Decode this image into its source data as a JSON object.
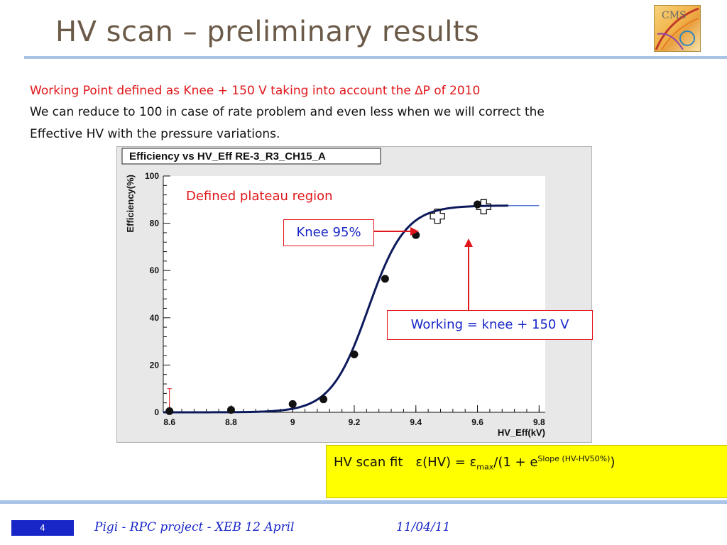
{
  "slide": {
    "title": "HV scan – preliminary results",
    "logo_text": "CMS",
    "lines": [
      "Working Point defined as Knee + 150 V taking into account the ∆P of 2010",
      "We can reduce to 100 in case of rate problem and even less when we will correct the",
      "Effective HV with the pressure variations."
    ]
  },
  "annotations": {
    "plateau": "Defined plateau region",
    "knee": "Knee 95%",
    "working": "Working = knee + 150 V"
  },
  "fit": {
    "label": "HV scan fit",
    "formula_main": "ε(HV) = ε",
    "formula_sub": "max",
    "formula_mid": "/(1 + e",
    "formula_sup": "Slope (HV-HV50%)",
    "formula_end": ")"
  },
  "footer": {
    "page": "4",
    "left": "Pigi - RPC project - XEB 12 April",
    "right": "11/04/11"
  },
  "colors": {
    "accent_red": "#e0171b",
    "text_blue": "#1826c8",
    "fit_yellow": "#ffff00",
    "rule_blue": "#a9c4e6",
    "curve_navy": "#0c1a5c"
  },
  "chart_data": {
    "type": "scatter",
    "title": "Efficiency vs HV_Eff RE-3_R3_CH15_A",
    "xlabel": "HV_Eff(kV)",
    "ylabel": "Efficiency(%)",
    "xlim": [
      8.58,
      9.82
    ],
    "ylim": [
      0,
      100
    ],
    "x_ticks": [
      8.6,
      8.8,
      9,
      9.2,
      9.4,
      9.6,
      9.8
    ],
    "y_ticks": [
      0,
      20,
      40,
      60,
      80,
      100
    ],
    "grid": false,
    "series": [
      {
        "x": [
          8.6,
          8.8,
          9.0,
          9.1,
          9.2,
          9.3,
          9.4,
          9.6
        ],
        "y": [
          0.5,
          1.0,
          3.5,
          5.5,
          24.5,
          56.5,
          75.0,
          88.0
        ],
        "yerr_up": [
          9.5,
          0,
          0,
          0,
          0,
          0,
          0,
          0
        ]
      }
    ],
    "fit": {
      "type": "sigmoid",
      "emax": 87.5,
      "hv50": 9.245,
      "slope": 16.5,
      "x_range": [
        8.58,
        9.7
      ],
      "extension_x": [
        9.7,
        9.8
      ]
    },
    "markers": [
      {
        "name": "knee",
        "x": 9.47,
        "y": 83
      },
      {
        "name": "working",
        "x": 9.62,
        "y": 87
      }
    ]
  }
}
